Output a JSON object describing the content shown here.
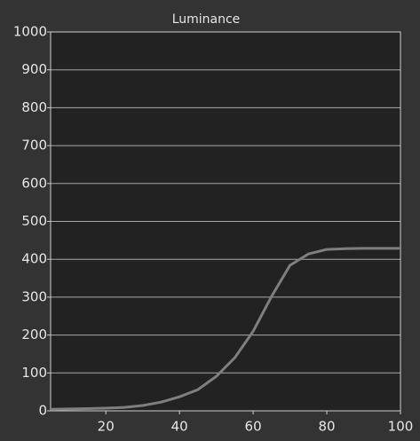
{
  "chart_data": {
    "type": "line",
    "title": "Luminance",
    "x": [
      5,
      10,
      15,
      20,
      25,
      30,
      35,
      40,
      45,
      50,
      55,
      60,
      65,
      70,
      75,
      80,
      85,
      90,
      95,
      100
    ],
    "series": [
      {
        "name": "Luminance",
        "color": "#7f7f7f",
        "values": [
          4,
          5,
          6,
          7,
          9,
          14,
          23,
          37,
          56,
          91,
          140,
          210,
          302,
          384,
          414,
          426,
          428,
          429,
          429,
          429
        ]
      }
    ],
    "xlim": [
      5,
      100
    ],
    "xticks": [
      20,
      40,
      60,
      80,
      100
    ],
    "ylim": [
      0,
      1000
    ],
    "yticks": [
      0,
      100,
      200,
      300,
      400,
      500,
      600,
      700,
      800,
      900,
      1000
    ],
    "grid": true
  }
}
